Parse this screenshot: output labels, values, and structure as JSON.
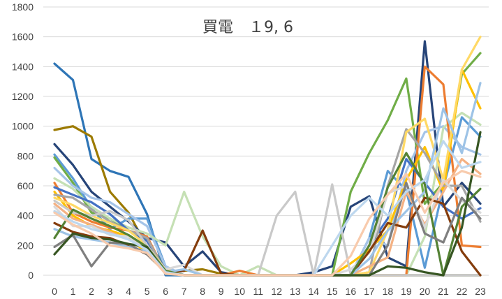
{
  "chart_data": {
    "type": "line",
    "title": "買電　１9, 6",
    "xlabel": "",
    "ylabel": "",
    "ylim": [
      0,
      1800
    ],
    "yticks": [
      0,
      200,
      400,
      600,
      800,
      1000,
      1200,
      1400,
      1600,
      1800
    ],
    "grid": "horizontal",
    "legend": "none",
    "categories": [
      "0",
      "1",
      "2",
      "3",
      "4",
      "5",
      "6",
      "7",
      "8",
      "9",
      "10",
      "11",
      "12",
      "13",
      "14",
      "15",
      "16",
      "17",
      "18",
      "19",
      "20",
      "21",
      "22",
      "23"
    ],
    "series": [
      {
        "color": "#2E75B6",
        "values": [
          1420,
          1310,
          780,
          700,
          660,
          410,
          0,
          0,
          0,
          0,
          0,
          0,
          0,
          0,
          0,
          0,
          0,
          0,
          0,
          0,
          0,
          0,
          0,
          0
        ]
      },
      {
        "color": "#9C7A00",
        "values": [
          975,
          1000,
          930,
          560,
          420,
          190,
          20,
          30,
          40,
          10,
          0,
          0,
          0,
          0,
          0,
          0,
          0,
          0,
          0,
          0,
          0,
          0,
          0,
          0
        ]
      },
      {
        "color": "#264478",
        "values": [
          880,
          740,
          560,
          460,
          360,
          250,
          220,
          60,
          160,
          20,
          0,
          0,
          0,
          0,
          20,
          60,
          460,
          530,
          120,
          60,
          1570,
          460,
          620,
          480
        ]
      },
      {
        "color": "#5B9BD5",
        "values": [
          810,
          650,
          450,
          310,
          380,
          380,
          60,
          0,
          0,
          0,
          0,
          0,
          0,
          0,
          0,
          0,
          0,
          250,
          700,
          570,
          50,
          590,
          1060,
          930
        ]
      },
      {
        "color": "#70AD47",
        "values": [
          790,
          620,
          420,
          380,
          300,
          240,
          40,
          0,
          0,
          0,
          0,
          0,
          0,
          0,
          0,
          0,
          560,
          820,
          1040,
          1320,
          480,
          620,
          1350,
          1490
        ]
      },
      {
        "color": "#A5C4E8",
        "values": [
          720,
          600,
          520,
          490,
          410,
          330,
          60,
          0,
          0,
          0,
          0,
          0,
          0,
          0,
          0,
          0,
          0,
          250,
          200,
          700,
          960,
          1000,
          860,
          810
        ]
      },
      {
        "color": "#C5E0B4",
        "values": [
          650,
          580,
          460,
          380,
          320,
          280,
          200,
          560,
          260,
          60,
          0,
          60,
          0,
          0,
          0,
          0,
          0,
          0,
          0,
          0,
          260,
          990,
          1090,
          1010
        ]
      },
      {
        "color": "#ED7D31",
        "values": [
          620,
          420,
          360,
          320,
          300,
          260,
          20,
          0,
          0,
          0,
          30,
          0,
          0,
          0,
          0,
          0,
          0,
          0,
          0,
          0,
          1400,
          1280,
          200,
          190
        ]
      },
      {
        "color": "#4472C4",
        "values": [
          590,
          540,
          490,
          410,
          300,
          230,
          40,
          0,
          0,
          0,
          0,
          0,
          0,
          0,
          0,
          0,
          0,
          200,
          380,
          780,
          620,
          460,
          380,
          450
        ]
      },
      {
        "color": "#FFC000",
        "values": [
          560,
          400,
          330,
          300,
          260,
          140,
          20,
          0,
          0,
          0,
          0,
          0,
          0,
          0,
          0,
          0,
          80,
          170,
          300,
          640,
          860,
          560,
          1380,
          1120
        ]
      },
      {
        "color": "#A5A5A5",
        "values": [
          540,
          520,
          440,
          360,
          300,
          250,
          20,
          0,
          0,
          0,
          0,
          0,
          0,
          0,
          0,
          0,
          0,
          20,
          600,
          980,
          820,
          600,
          600,
          360
        ]
      },
      {
        "color": "#FFD966",
        "values": [
          520,
          470,
          400,
          350,
          300,
          200,
          40,
          0,
          0,
          0,
          0,
          0,
          0,
          0,
          0,
          0,
          0,
          20,
          300,
          960,
          1050,
          640,
          1380,
          1600
        ]
      },
      {
        "color": "#C9C9C9",
        "values": [
          500,
          420,
          400,
          430,
          370,
          200,
          30,
          0,
          0,
          0,
          0,
          0,
          400,
          560,
          0,
          610,
          0,
          0,
          0,
          0,
          0,
          0,
          0,
          0
        ]
      },
      {
        "color": "#F4B183",
        "values": [
          480,
          380,
          340,
          290,
          240,
          180,
          20,
          0,
          0,
          0,
          0,
          0,
          0,
          0,
          0,
          0,
          0,
          60,
          120,
          560,
          340,
          560,
          780,
          680
        ]
      },
      {
        "color": "#D9D9D9",
        "values": [
          460,
          330,
          330,
          270,
          260,
          180,
          40,
          70,
          0,
          0,
          0,
          0,
          0,
          0,
          0,
          0,
          40,
          150,
          550,
          600,
          320,
          640,
          500,
          420
        ]
      },
      {
        "color": "#843C0C",
        "values": [
          350,
          290,
          260,
          250,
          200,
          140,
          20,
          30,
          300,
          10,
          0,
          0,
          0,
          0,
          0,
          0,
          0,
          160,
          350,
          320,
          520,
          480,
          160,
          0
        ]
      },
      {
        "color": "#9DC3E6",
        "values": [
          310,
          260,
          240,
          220,
          190,
          160,
          20,
          40,
          0,
          0,
          0,
          0,
          0,
          0,
          0,
          0,
          0,
          110,
          300,
          430,
          560,
          1120,
          820,
          1290
        ]
      },
      {
        "color": "#548235",
        "values": [
          250,
          440,
          380,
          330,
          270,
          190,
          30,
          0,
          0,
          0,
          0,
          0,
          0,
          0,
          0,
          0,
          0,
          200,
          590,
          820,
          610,
          0,
          460,
          580
        ]
      },
      {
        "color": "#7F7F7F",
        "values": [
          190,
          270,
          60,
          220,
          210,
          140,
          20,
          0,
          0,
          0,
          0,
          0,
          0,
          0,
          0,
          0,
          0,
          0,
          200,
          620,
          280,
          220,
          520,
          380
        ]
      },
      {
        "color": "#375623",
        "values": [
          140,
          280,
          250,
          240,
          210,
          190,
          10,
          0,
          0,
          0,
          0,
          0,
          0,
          0,
          0,
          0,
          0,
          0,
          60,
          50,
          20,
          0,
          320,
          960
        ]
      },
      {
        "color": "#BDD7EE",
        "values": [
          430,
          360,
          310,
          280,
          240,
          170,
          20,
          0,
          0,
          0,
          0,
          0,
          0,
          0,
          0,
          200,
          400,
          520,
          400,
          560,
          640,
          900,
          720,
          760
        ]
      },
      {
        "color": "#F8CBAD",
        "values": [
          420,
          340,
          280,
          200,
          180,
          150,
          10,
          0,
          0,
          0,
          0,
          0,
          0,
          0,
          0,
          0,
          130,
          380,
          540,
          680,
          420,
          620,
          700,
          660
        ]
      }
    ]
  }
}
